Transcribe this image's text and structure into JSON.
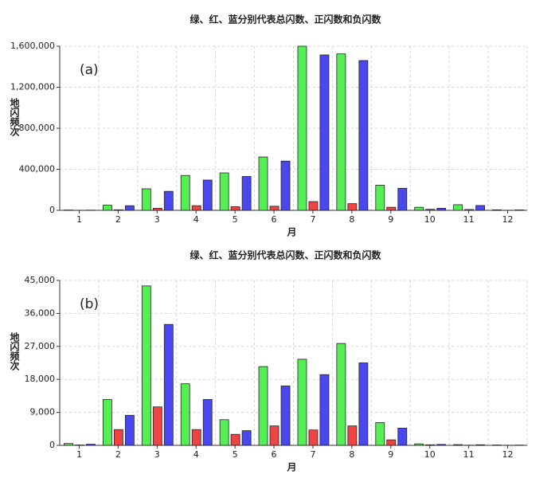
{
  "chart_data": [
    {
      "type": "bar",
      "title": "绿、红、蓝分别代表总闪数、正闪数和负闪数",
      "annotation": "(a)",
      "x_label": "月",
      "y_label": "地闪频次",
      "categories": [
        "1",
        "2",
        "3",
        "4",
        "5",
        "6",
        "7",
        "8",
        "9",
        "10",
        "11",
        "12"
      ],
      "series": [
        {
          "color": "#55ee55",
          "values": [
            3000,
            50000,
            210000,
            340000,
            365000,
            520000,
            1600000,
            1525000,
            245000,
            30000,
            55000,
            5000
          ]
        },
        {
          "color": "#ee4444",
          "values": [
            500,
            5000,
            20000,
            45000,
            35000,
            40000,
            85000,
            65000,
            30000,
            10000,
            8000,
            1000
          ]
        },
        {
          "color": "#4848ee",
          "values": [
            2000,
            45000,
            185000,
            295000,
            330000,
            480000,
            1515000,
            1460000,
            215000,
            20000,
            47000,
            4000
          ]
        }
      ],
      "ylim": [
        0,
        1600000
      ],
      "yticks": [
        0,
        {
          "value": 400000,
          "label": "400,000"
        },
        {
          "value": 800000,
          "label": "800,000"
        },
        {
          "value": 1200000,
          "label": "1,200,000"
        },
        {
          "value": 1600000,
          "label": "1,600,000"
        }
      ],
      "grid": true
    },
    {
      "type": "bar",
      "title": "绿、红、蓝分别代表总闪数、正闪数和负闪数",
      "annotation": "(b)",
      "x_label": "月",
      "y_label": "地闪频次",
      "categories": [
        "1",
        "2",
        "3",
        "4",
        "5",
        "6",
        "7",
        "8",
        "9",
        "10",
        "11",
        "12"
      ],
      "series": [
        {
          "color": "#55ee55",
          "values": [
            500,
            12500,
            43500,
            16800,
            7000,
            21500,
            23500,
            27800,
            6200,
            400,
            200,
            100
          ]
        },
        {
          "color": "#ee4444",
          "values": [
            100,
            4300,
            10500,
            4300,
            3000,
            5300,
            4200,
            5300,
            1500,
            150,
            50,
            30
          ]
        },
        {
          "color": "#4848ee",
          "values": [
            300,
            8200,
            33000,
            12500,
            4000,
            16200,
            19300,
            22500,
            4700,
            250,
            150,
            70
          ]
        }
      ],
      "ylim": [
        0,
        45000
      ],
      "yticks": [
        0,
        {
          "value": 9000,
          "label": "9,000"
        },
        {
          "value": 18000,
          "label": "18,000"
        },
        {
          "value": 27000,
          "label": "27,000"
        },
        {
          "value": 36000,
          "label": "36,000"
        },
        {
          "value": 45000,
          "label": "45,000"
        }
      ],
      "grid": true
    }
  ]
}
